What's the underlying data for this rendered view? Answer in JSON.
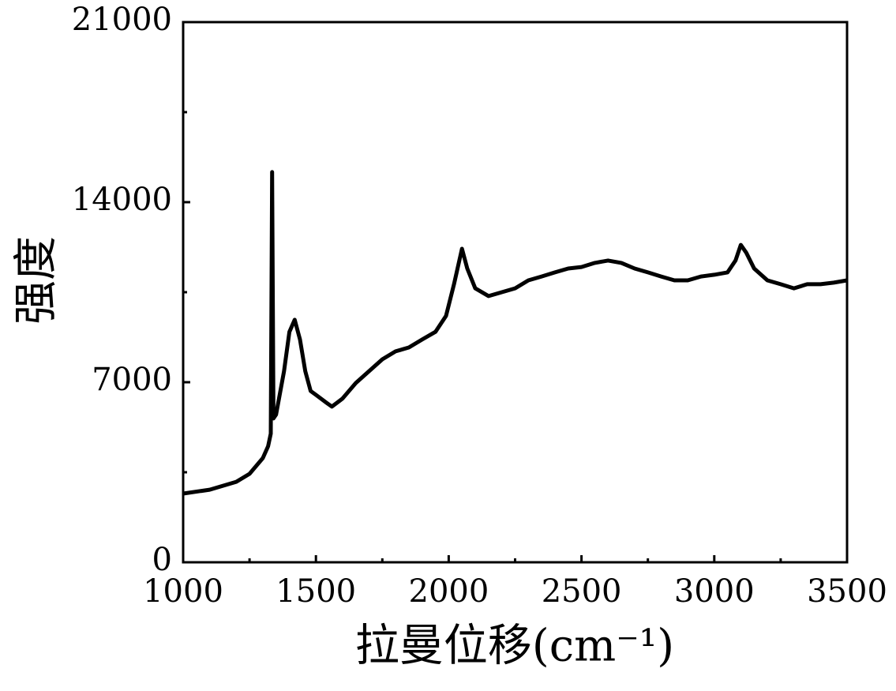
{
  "chart_data": {
    "type": "line",
    "x_label": "拉曼位移(cm⁻¹)",
    "y_label": "强度",
    "x": [
      1000,
      1100,
      1200,
      1250,
      1300,
      1320,
      1330,
      1335,
      1340,
      1350,
      1380,
      1400,
      1420,
      1440,
      1460,
      1480,
      1500,
      1540,
      1560,
      1600,
      1650,
      1700,
      1750,
      1800,
      1850,
      1900,
      1950,
      1990,
      2020,
      2050,
      2070,
      2100,
      2150,
      2200,
      2250,
      2300,
      2350,
      2400,
      2450,
      2500,
      2550,
      2600,
      2650,
      2700,
      2750,
      2800,
      2850,
      2900,
      2950,
      3000,
      3050,
      3080,
      3100,
      3120,
      3150,
      3200,
      3250,
      3300,
      3350,
      3400,
      3450,
      3500
    ],
    "series": [
      {
        "color": "#000000",
        "values": [
          2670,
          2820,
          3130,
          3440,
          4050,
          4510,
          5000,
          15170,
          5590,
          5740,
          7430,
          8960,
          9430,
          8660,
          7430,
          6660,
          6510,
          6200,
          6050,
          6360,
          6970,
          7430,
          7890,
          8200,
          8350,
          8660,
          8960,
          9580,
          10810,
          12190,
          11420,
          10650,
          10350,
          10500,
          10650,
          10960,
          11110,
          11270,
          11420,
          11480,
          11640,
          11730,
          11640,
          11420,
          11270,
          11110,
          10960,
          10960,
          11110,
          11180,
          11270,
          11730,
          12340,
          12040,
          11420,
          10960,
          10810,
          10650,
          10810,
          10810,
          10870,
          10960
        ]
      }
    ],
    "xlim": [
      1000,
      3500
    ],
    "xticks": [
      1000,
      1500,
      2000,
      2500,
      3000,
      3500
    ],
    "xminorticks": [
      1250,
      1750,
      2250,
      2750,
      3250
    ],
    "ylim": [
      0,
      21000
    ],
    "yticks": [
      0,
      7000,
      14000,
      21000
    ],
    "yminorticks": [
      3500,
      10500,
      17500
    ],
    "grid": false
  }
}
